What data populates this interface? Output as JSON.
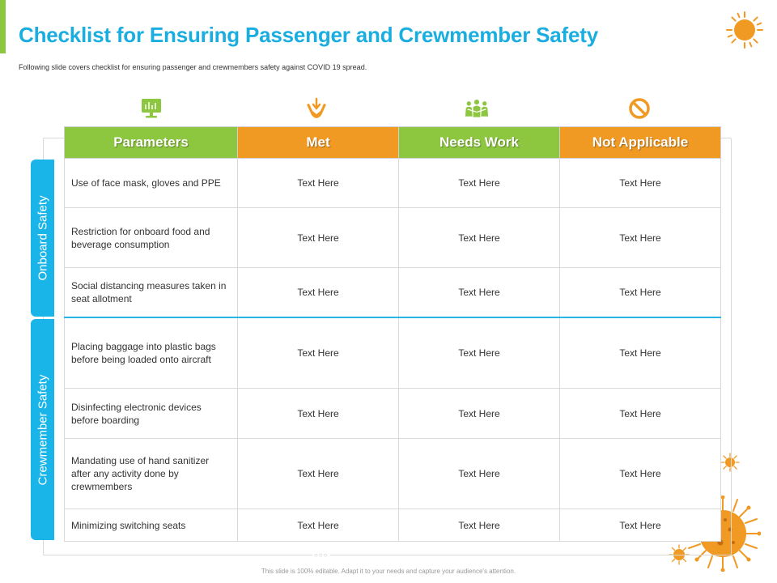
{
  "title": "Checklist for Ensuring Passenger and Crewmember Safety",
  "subtitle": "Following slide covers checklist for ensuring passenger and crewmembers safety against COVID 19 spread.",
  "colors": {
    "title": "#1aaee0",
    "green": "#8dc63f",
    "orange": "#f09a24",
    "blue": "#19b4e8"
  },
  "icons": [
    "monitor-chart-icon",
    "hands-care-icon",
    "people-group-icon",
    "prohibited-icon"
  ],
  "table": {
    "headers": [
      "Parameters",
      "Met",
      "Needs Work",
      "Not Applicable"
    ],
    "sections": [
      {
        "label": "Onboard Safety"
      },
      {
        "label": "Crewmember Safety"
      }
    ],
    "rows": [
      {
        "param": "Use of face mask, gloves and PPE",
        "met": "Text Here",
        "needs_work": "Text Here",
        "not_applicable": "Text Here"
      },
      {
        "param": "Restriction for onboard food and beverage  consumption",
        "met": "Text Here",
        "needs_work": "Text Here",
        "not_applicable": "Text Here"
      },
      {
        "param": "Social distancing measures taken in seat allotment",
        "met": "Text Here",
        "needs_work": "Text Here",
        "not_applicable": "Text Here"
      },
      {
        "param": "Placing baggage into plastic bags before being loaded onto aircraft",
        "met": "Text Here",
        "needs_work": "Text Here",
        "not_applicable": "Text Here"
      },
      {
        "param": "Disinfecting electronic devices before boarding",
        "met": "Text Here",
        "needs_work": "Text Here",
        "not_applicable": "Text Here"
      },
      {
        "param": "Mandating use of hand sanitizer after any activity done by crewmembers",
        "met": "Text Here",
        "needs_work": "Text Here",
        "not_applicable": "Text Here"
      },
      {
        "param": "Minimizing switching seats",
        "met": "Text Here",
        "needs_work": "Text Here",
        "not_applicable": "Text Here"
      }
    ]
  },
  "frame_dots": "○○○",
  "footer": "This slide is 100% editable. Adapt it to your needs and capture your audience's attention."
}
